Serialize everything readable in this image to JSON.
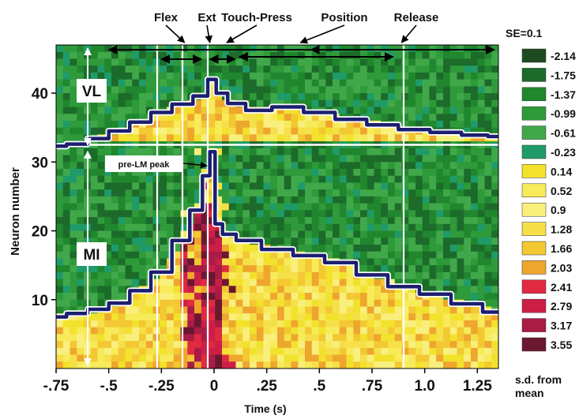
{
  "chart_data": {
    "type": "heatmap",
    "xlabel": "Time (s)",
    "ylabel": "Neuron number",
    "xlim": [
      -0.75,
      1.35
    ],
    "ylim": [
      0,
      47
    ],
    "x_ticks": [
      {
        "value": -0.75,
        "label": "-.75"
      },
      {
        "value": -0.5,
        "label": "-.5"
      },
      {
        "value": -0.25,
        "label": "-.25"
      },
      {
        "value": 0,
        "label": "0"
      },
      {
        "value": 0.25,
        "label": ".25"
      },
      {
        "value": 0.5,
        "label": ".5"
      },
      {
        "value": 0.75,
        "label": ".75"
      },
      {
        "value": 1.0,
        "label": "1.0"
      },
      {
        "value": 1.25,
        "label": "1.25"
      }
    ],
    "y_ticks": [
      10,
      20,
      30,
      40
    ],
    "event_labels": [
      {
        "label": "Flex",
        "time": -0.14
      },
      {
        "label": "Ext",
        "time": -0.02
      },
      {
        "label": "Touch-Press",
        "time": 0.06
      },
      {
        "label": "Position",
        "time": 0.41
      },
      {
        "label": "Release",
        "time": 0.89
      }
    ],
    "event_lines": [
      -0.27,
      -0.15,
      -0.03,
      0.9
    ],
    "phase_arrows": [
      {
        "from": -0.5,
        "to": 1.33
      },
      {
        "from": -0.25,
        "to": -0.06
      },
      {
        "from": -0.02,
        "to": 0.1
      },
      {
        "from": 0.12,
        "to": 0.85
      },
      {
        "from": 0.46,
        "to": 1.33
      }
    ],
    "group_divider_neuron": 32.5,
    "groups": [
      {
        "label": "VL",
        "neuron_min": 33,
        "neuron_max": 47
      },
      {
        "label": "MI",
        "neuron_min": 1,
        "neuron_max": 32
      }
    ],
    "annotation": {
      "label": "pre-LM peak",
      "time": -0.03,
      "neuron": 30.5
    },
    "population_traces": [
      {
        "group": "VL",
        "points": [
          [
            -0.75,
            32.3
          ],
          [
            -0.65,
            32.6
          ],
          [
            -0.55,
            33.4
          ],
          [
            -0.45,
            34.5
          ],
          [
            -0.35,
            35.8
          ],
          [
            -0.25,
            37.2
          ],
          [
            -0.15,
            38.4
          ],
          [
            -0.05,
            39.6
          ],
          [
            -0.01,
            42.0
          ],
          [
            0.03,
            40.0
          ],
          [
            0.1,
            38.5
          ],
          [
            0.2,
            37.5
          ],
          [
            0.35,
            38.0
          ],
          [
            0.5,
            37.2
          ],
          [
            0.65,
            36.2
          ],
          [
            0.8,
            35.4
          ],
          [
            0.95,
            34.7
          ],
          [
            1.1,
            34.3
          ],
          [
            1.25,
            33.9
          ],
          [
            1.35,
            33.7
          ]
        ]
      },
      {
        "group": "MI",
        "points": [
          [
            -0.75,
            7.5
          ],
          [
            -0.65,
            8.0
          ],
          [
            -0.55,
            8.6
          ],
          [
            -0.45,
            9.5
          ],
          [
            -0.35,
            11.3
          ],
          [
            -0.25,
            14.0
          ],
          [
            -0.15,
            18.6
          ],
          [
            -0.08,
            23.0
          ],
          [
            -0.03,
            28.0
          ],
          [
            -0.01,
            31.5
          ],
          [
            0.02,
            21.0
          ],
          [
            0.06,
            19.5
          ],
          [
            0.15,
            18.6
          ],
          [
            0.3,
            17.3
          ],
          [
            0.45,
            16.4
          ],
          [
            0.6,
            15.4
          ],
          [
            0.75,
            13.6
          ],
          [
            0.9,
            11.9
          ],
          [
            1.05,
            10.8
          ],
          [
            1.2,
            9.4
          ],
          [
            1.35,
            8.2
          ]
        ]
      }
    ],
    "legend": {
      "title": "SE=0.1",
      "footer_line1": "s.d. from",
      "footer_line2": "mean",
      "placement": "right",
      "bins": [
        {
          "label": "-2.14",
          "color": "#1e4a22"
        },
        {
          "label": "-1.75",
          "color": "#1c6b2a"
        },
        {
          "label": "-1.37",
          "color": "#20872e"
        },
        {
          "label": "-0.99",
          "color": "#2e9a3a"
        },
        {
          "label": "-0.61",
          "color": "#41a84a"
        },
        {
          "label": "-0.23",
          "color": "#1f9b6a"
        },
        {
          "label": "0.14",
          "color": "#f2e22c"
        },
        {
          "label": "0.52",
          "color": "#f7eb5a"
        },
        {
          "label": "0.9",
          "color": "#f9ef7c"
        },
        {
          "label": "1.28",
          "color": "#f6e04a"
        },
        {
          "label": "1.66",
          "color": "#f3c832"
        },
        {
          "label": "2.03",
          "color": "#eea62e"
        },
        {
          "label": "2.41",
          "color": "#e02a40"
        },
        {
          "label": "2.79",
          "color": "#cc1f48"
        },
        {
          "label": "3.17",
          "color": "#a81c45"
        },
        {
          "label": "3.55",
          "color": "#6b1730"
        }
      ]
    }
  }
}
